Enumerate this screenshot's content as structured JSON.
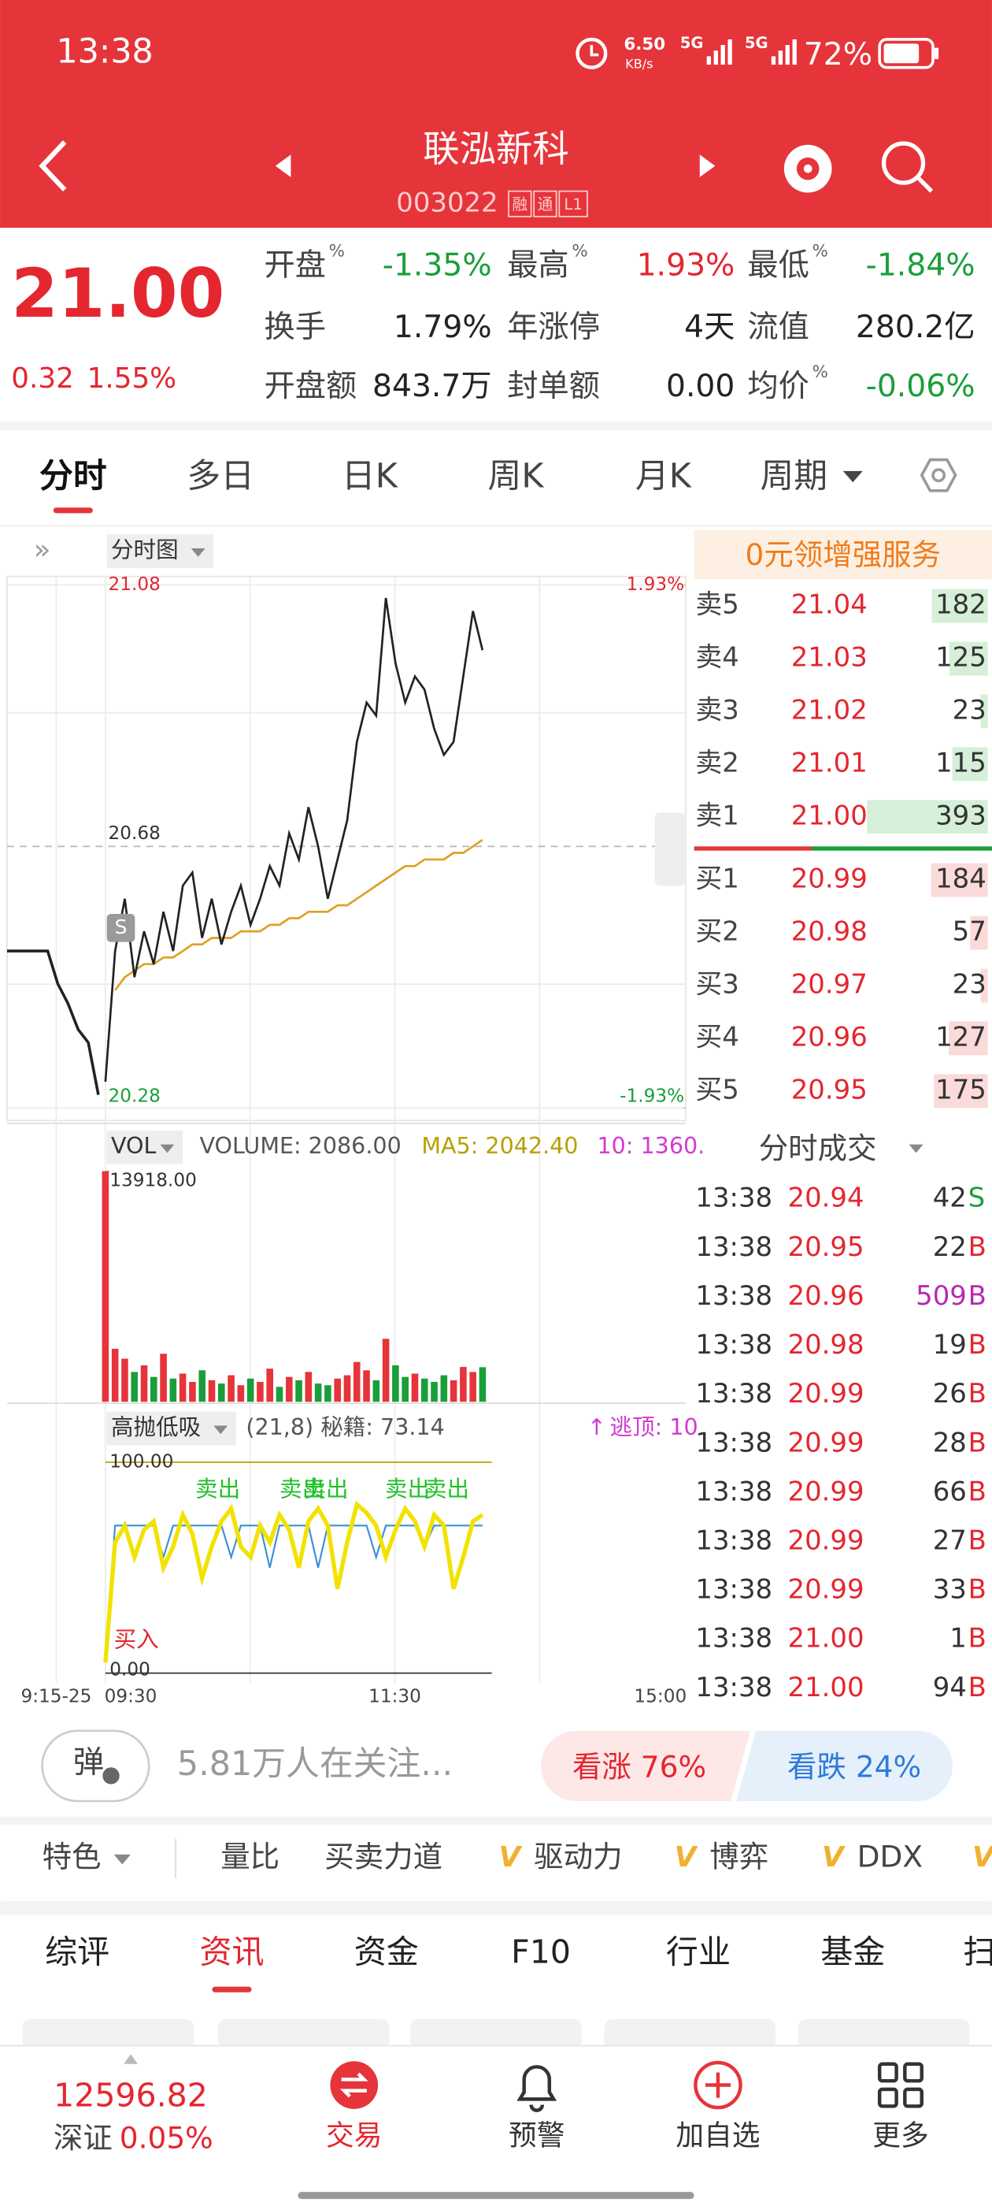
{
  "status_bar": {
    "time": "13:38",
    "net_speed": "6.50",
    "net_unit": "KB/s",
    "sig1": "5G",
    "sig2": "5G",
    "battery": "72%"
  },
  "header": {
    "name": "联泓新科",
    "code": "003022",
    "tags": [
      "融",
      "通",
      "L1"
    ]
  },
  "quote": {
    "price": "21.00",
    "change": "0.32",
    "change_pct": "1.55%",
    "stats": [
      {
        "label": "开盘",
        "sup": "%",
        "value": "-1.35%",
        "color": "#1a9e3a"
      },
      {
        "label": "最高",
        "sup": "%",
        "value": "1.93%",
        "color": "#e4262f"
      },
      {
        "label": "最低",
        "sup": "%",
        "value": "-1.84%",
        "color": "#1a9e3a"
      },
      {
        "label": "换手",
        "value": "1.79%",
        "color": "#222222"
      },
      {
        "label": "年涨停",
        "value": "4天",
        "color": "#222222"
      },
      {
        "label": "流值",
        "value": "280.2亿",
        "color": "#222222"
      },
      {
        "label": "开盘额",
        "value": "843.7万",
        "color": "#222222"
      },
      {
        "label": "封单额",
        "value": "0.00",
        "color": "#222222"
      },
      {
        "label": "均价",
        "sup": "%",
        "value": "-0.06%",
        "color": "#1a9e3a"
      }
    ]
  },
  "tabs": [
    "分时",
    "多日",
    "日K",
    "周K",
    "月K",
    "周期"
  ],
  "promo": "0元领增强服务",
  "intraday": {
    "type": "line",
    "selector": "分时图",
    "badge": "S",
    "xlim": [
      0,
      240
    ],
    "x": [
      0,
      4,
      8,
      12,
      16,
      20,
      24,
      28,
      32,
      36,
      40,
      44,
      48,
      52,
      56,
      60,
      64,
      68,
      72,
      76,
      80,
      84,
      88,
      92,
      96,
      100,
      104,
      108,
      112,
      116,
      120,
      124,
      128,
      132,
      136,
      140,
      144,
      148,
      152,
      156
    ],
    "ylim": [
      20.28,
      21.08
    ],
    "yticks": [
      20.28,
      20.68,
      21.08
    ],
    "y2lim": [
      -1.93,
      1.93
    ],
    "y2ticks": [
      {
        "value": -1.93,
        "label": "-1.93%"
      },
      {
        "value": 1.93,
        "label": "1.93%"
      }
    ],
    "price": {
      "color": "#222222",
      "values": [
        20.32,
        20.52,
        20.6,
        20.48,
        20.55,
        20.5,
        20.58,
        20.52,
        20.62,
        20.64,
        20.54,
        20.6,
        20.53,
        20.58,
        20.62,
        20.56,
        20.6,
        20.65,
        20.62,
        20.7,
        20.66,
        20.74,
        20.68,
        20.6,
        20.66,
        20.72,
        20.84,
        20.9,
        20.88,
        21.06,
        20.96,
        20.9,
        20.94,
        20.92,
        20.86,
        20.82,
        20.84,
        20.94,
        21.04,
        20.98
      ]
    },
    "average": {
      "color": "#e0a020",
      "values": [
        null,
        20.46,
        20.48,
        20.49,
        20.5,
        20.5,
        20.51,
        20.51,
        20.52,
        20.53,
        20.53,
        20.54,
        20.54,
        20.54,
        20.55,
        20.55,
        20.55,
        20.56,
        20.56,
        20.57,
        20.57,
        20.58,
        20.58,
        20.58,
        20.59,
        20.59,
        20.6,
        20.61,
        20.62,
        20.63,
        20.64,
        20.65,
        20.65,
        20.66,
        20.66,
        20.66,
        20.67,
        20.67,
        20.68,
        20.69
      ]
    },
    "pre_market": {
      "color": "#222222",
      "values": [
        20.52,
        20.52,
        20.52,
        20.52,
        20.52,
        20.47,
        20.44,
        20.4,
        20.38,
        20.3
      ]
    },
    "time_axis": [
      "9:15-25",
      "09:30",
      "11:30",
      "15:00"
    ]
  },
  "volume": {
    "type": "bar",
    "selector": "VOL",
    "volume": "VOLUME: 2086.00",
    "ma5": "MA5: 2042.40",
    "ma10": "10: 1360.",
    "ylim": [
      0,
      13918
    ],
    "yticks": [
      {
        "value": 13918,
        "label": "13918.00"
      }
    ],
    "values": [
      13918,
      3200,
      2600,
      1800,
      2200,
      1500,
      2900,
      1400,
      1700,
      1200,
      1900,
      1300,
      1100,
      1600,
      1000,
      1400,
      1200,
      2000,
      900,
      1500,
      1300,
      1800,
      1100,
      1000,
      1400,
      1600,
      2400,
      1900,
      1300,
      3800,
      2200,
      1500,
      1700,
      1400,
      1200,
      1600,
      1300,
      2100,
      1800,
      2086
    ]
  },
  "indicator": {
    "type": "line",
    "selector": "高抛低吸",
    "params": "(21,8) 秘籍: 73.14",
    "escape": "逃顶: 10",
    "ylim": [
      0,
      100
    ],
    "yticks": [
      {
        "value": 0,
        "label": "0.00"
      },
      {
        "value": 100,
        "label": "100.00"
      }
    ],
    "series": [
      {
        "color": "#f2e200",
        "values": [
          5,
          62,
          70,
          55,
          68,
          72,
          50,
          60,
          75,
          66,
          45,
          60,
          72,
          78,
          60,
          55,
          70,
          62,
          75,
          68,
          50,
          72,
          78,
          70,
          40,
          62,
          80,
          76,
          70,
          55,
          68,
          78,
          72,
          60,
          75,
          70,
          40,
          55,
          72,
          75
        ]
      },
      {
        "color": "#3a8fd8",
        "values": [
          10,
          70,
          70,
          70,
          70,
          70,
          55,
          70,
          70,
          70,
          70,
          70,
          70,
          55,
          70,
          70,
          70,
          50,
          70,
          70,
          70,
          70,
          50,
          70,
          70,
          70,
          70,
          70,
          55,
          70,
          70,
          70,
          70,
          60,
          70,
          70,
          70,
          70,
          70,
          70
        ]
      }
    ],
    "sell_labels": [
      "卖出",
      "卖出",
      "卖出",
      "卖出",
      "卖出"
    ],
    "buy_label": "买入"
  },
  "order_book": {
    "asks": [
      {
        "label": "卖5",
        "price": "21.04",
        "vol": 182
      },
      {
        "label": "卖4",
        "price": "21.03",
        "vol": 125
      },
      {
        "label": "卖3",
        "price": "21.02",
        "vol": 23
      },
      {
        "label": "卖2",
        "price": "21.01",
        "vol": 115
      },
      {
        "label": "卖1",
        "price": "21.00",
        "vol": 393
      }
    ],
    "bids": [
      {
        "label": "买1",
        "price": "20.99",
        "vol": 184
      },
      {
        "label": "买2",
        "price": "20.98",
        "vol": 57
      },
      {
        "label": "买3",
        "price": "20.97",
        "vol": 23
      },
      {
        "label": "买4",
        "price": "20.96",
        "vol": 127
      },
      {
        "label": "买5",
        "price": "20.95",
        "vol": 175
      }
    ]
  },
  "trades_title": "分时成交",
  "trades": [
    {
      "time": "13:38",
      "price": "20.94",
      "vol": "42",
      "side": "S"
    },
    {
      "time": "13:38",
      "price": "20.95",
      "vol": "22",
      "side": "B"
    },
    {
      "time": "13:38",
      "price": "20.96",
      "vol": "509",
      "side": "B"
    },
    {
      "time": "13:38",
      "price": "20.98",
      "vol": "19",
      "side": "B"
    },
    {
      "time": "13:38",
      "price": "20.99",
      "vol": "26",
      "side": "B"
    },
    {
      "time": "13:38",
      "price": "20.99",
      "vol": "28",
      "side": "B"
    },
    {
      "time": "13:38",
      "price": "20.99",
      "vol": "66",
      "side": "B"
    },
    {
      "time": "13:38",
      "price": "20.99",
      "vol": "27",
      "side": "B"
    },
    {
      "time": "13:38",
      "price": "20.99",
      "vol": "33",
      "side": "B"
    },
    {
      "time": "13:38",
      "price": "21.00",
      "vol": "1",
      "side": "B"
    },
    {
      "time": "13:38",
      "price": "21.00",
      "vol": "94",
      "side": "B"
    }
  ],
  "attention": {
    "badge": "弹",
    "text": "5.81万人在关注...",
    "up": "看涨 76%",
    "down": "看跌 24%"
  },
  "features": {
    "first": "特色",
    "items": [
      "量比",
      "买卖力道"
    ],
    "v_mark": "V",
    "v_items": [
      "驱动力",
      "博弈",
      "DDX"
    ]
  },
  "news_tabs": [
    "综评",
    "资讯",
    "资金",
    "F10",
    "行业",
    "基金",
    "扫"
  ],
  "bottom_nav": {
    "index_value": "12596.82",
    "index_name": "深证",
    "index_pct": "0.05%",
    "items": [
      "交易",
      "预警",
      "加自选",
      "更多"
    ]
  }
}
